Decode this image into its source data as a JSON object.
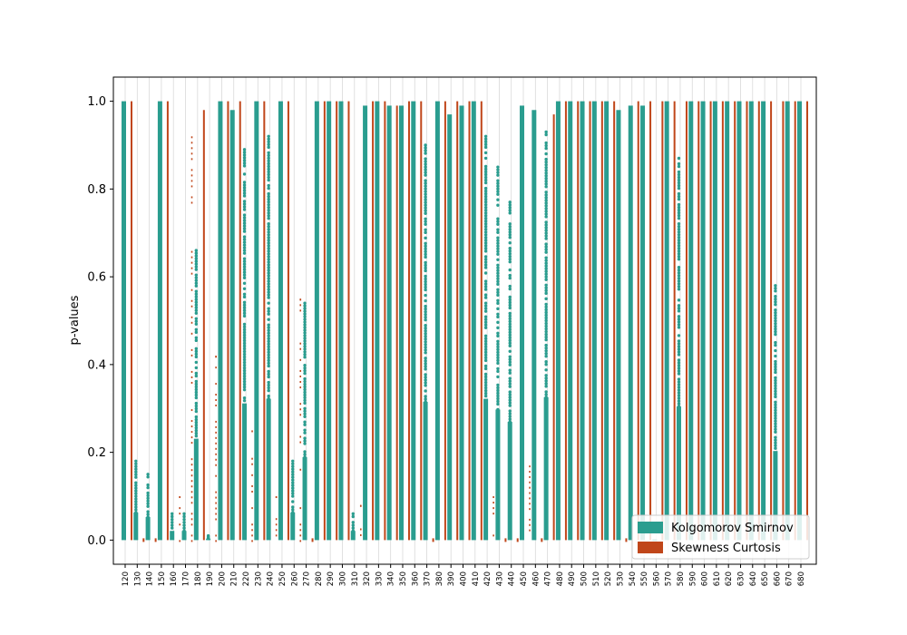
{
  "chart_data": {
    "type": "scatter",
    "title": "",
    "xlabel": "",
    "ylabel": "p-values",
    "ylim": [
      -0.055,
      1.055
    ],
    "yticks": [
      "0.0",
      "0.2",
      "0.4",
      "0.6",
      "0.8",
      "1.0"
    ],
    "grid": "vertical",
    "legend_position": "bottom-right",
    "colors": {
      "ks": "#2a9d8f",
      "sc": "#c0461a"
    },
    "categories": [
      "120",
      "130",
      "140",
      "150",
      "160",
      "170",
      "180",
      "190",
      "200",
      "210",
      "220",
      "230",
      "240",
      "250",
      "260",
      "270",
      "280",
      "290",
      "300",
      "310",
      "320",
      "330",
      "340",
      "350",
      "360",
      "370",
      "380",
      "390",
      "400",
      "410",
      "420",
      "430",
      "440",
      "450",
      "460",
      "470",
      "480",
      "490",
      "500",
      "510",
      "520",
      "530",
      "540",
      "550",
      "560",
      "570",
      "580",
      "590",
      "600",
      "610",
      "620",
      "630",
      "640",
      "650",
      "660",
      "670",
      "680"
    ],
    "series": [
      {
        "name": "Kolgomorov Smirnov",
        "ranges": [
          [
            0,
            1
          ],
          [
            0,
            0.18
          ],
          [
            0,
            0.15
          ],
          [
            0,
            1
          ],
          [
            0,
            0.06
          ],
          [
            0,
            0.06
          ],
          [
            0,
            0.66
          ],
          [
            0,
            0.01
          ],
          [
            0,
            1
          ],
          [
            0,
            0.98
          ],
          [
            0,
            0.89
          ],
          [
            0,
            1
          ],
          [
            0,
            0.92
          ],
          [
            0,
            1
          ],
          [
            0,
            0.18
          ],
          [
            0,
            0.54
          ],
          [
            0,
            1
          ],
          [
            0,
            1
          ],
          [
            0,
            1
          ],
          [
            0,
            0.06
          ],
          [
            0,
            0.99
          ],
          [
            0,
            1
          ],
          [
            0,
            0.99
          ],
          [
            0,
            0.99
          ],
          [
            0,
            1
          ],
          [
            0,
            0.9
          ],
          [
            0,
            1
          ],
          [
            0,
            0.97
          ],
          [
            0,
            0.99
          ],
          [
            0,
            1
          ],
          [
            0,
            0.92
          ],
          [
            0,
            0.85
          ],
          [
            0,
            0.77
          ],
          [
            0,
            0.99
          ],
          [
            0,
            0.98
          ],
          [
            0,
            0.93
          ],
          [
            0,
            1
          ],
          [
            0,
            1
          ],
          [
            0,
            1
          ],
          [
            0,
            1
          ],
          [
            0,
            1
          ],
          [
            0,
            0.98
          ],
          [
            0,
            0.99
          ],
          [
            0,
            0.99
          ],
          [
            0,
            0
          ],
          [
            0,
            1
          ],
          [
            0,
            0.87
          ],
          [
            0,
            1
          ],
          [
            0,
            1
          ],
          [
            0,
            1
          ],
          [
            0,
            1
          ],
          [
            0,
            1
          ],
          [
            0,
            1
          ],
          [
            0,
            1
          ],
          [
            0,
            0.58
          ],
          [
            0,
            1
          ],
          [
            0,
            1
          ]
        ]
      },
      {
        "name": "Skewness Curtosis",
        "ranges": [
          [
            0,
            1
          ],
          [
            0,
            0.01
          ],
          [
            0,
            0.01
          ],
          [
            0,
            1
          ],
          [
            0,
            0.1
          ],
          [
            0,
            0.92
          ],
          [
            0,
            0.98
          ],
          [
            0,
            0.42
          ],
          [
            0,
            1
          ],
          [
            0,
            1
          ],
          [
            0,
            0.25
          ],
          [
            0,
            1
          ],
          [
            0,
            0.1
          ],
          [
            0,
            1
          ],
          [
            0,
            0.55
          ],
          [
            0,
            0.01
          ],
          [
            0,
            1
          ],
          [
            0,
            1
          ],
          [
            0,
            1
          ],
          [
            0,
            0.08
          ],
          [
            0,
            1
          ],
          [
            0,
            1
          ],
          [
            0,
            0.99
          ],
          [
            0,
            1
          ],
          [
            0,
            1
          ],
          [
            0,
            0.01
          ],
          [
            0,
            1
          ],
          [
            0,
            1
          ],
          [
            0,
            1
          ],
          [
            0,
            1
          ],
          [
            0,
            0.1
          ],
          [
            0,
            0.01
          ],
          [
            0,
            0.01
          ],
          [
            0,
            0.17
          ],
          [
            0,
            0.01
          ],
          [
            0,
            0.97
          ],
          [
            0,
            1
          ],
          [
            0,
            1
          ],
          [
            0,
            1
          ],
          [
            0,
            1
          ],
          [
            0,
            1
          ],
          [
            0,
            0.01
          ],
          [
            0,
            1
          ],
          [
            0,
            1
          ],
          [
            0,
            1
          ],
          [
            0,
            1
          ],
          [
            0,
            1
          ],
          [
            0,
            1
          ],
          [
            0,
            1
          ],
          [
            0,
            1
          ],
          [
            0,
            1
          ],
          [
            0,
            1
          ],
          [
            0,
            1
          ],
          [
            0,
            1
          ],
          [
            0,
            1
          ],
          [
            0,
            1
          ],
          [
            0,
            1
          ]
        ]
      }
    ]
  }
}
